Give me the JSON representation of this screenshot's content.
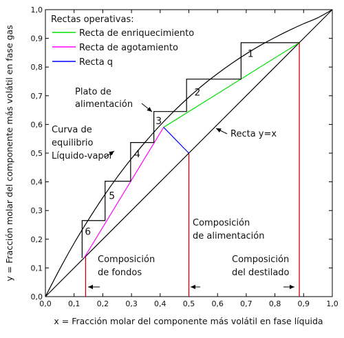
{
  "chart_data": {
    "type": "line",
    "title": "",
    "xlabel": "x = Fracción molar del componente más volátil en fase líquida",
    "ylabel": "y = Fracción molar del componente más volátil en fase gas",
    "xlim": [
      0,
      1
    ],
    "ylim": [
      0,
      1
    ],
    "xticks": [
      "0,0",
      "0,1",
      "0,2",
      "0,3",
      "0,4",
      "0,5",
      "0,6",
      "0,7",
      "0,8",
      "0,9",
      "1,0"
    ],
    "yticks": [
      "0,0",
      "0,1",
      "0,2",
      "0,3",
      "0,4",
      "0,5",
      "0,6",
      "0,7",
      "0,8",
      "0,9",
      "1,0"
    ],
    "grid": false,
    "legend": {
      "title": "Rectas operativas:",
      "placement": "top-left",
      "entries": [
        {
          "label": "Recta de enriquecimiento",
          "color": "#00e000"
        },
        {
          "label": "Recta de agotamiento",
          "color": "#ff00ff"
        },
        {
          "label": "Recta q",
          "color": "#0000ff"
        }
      ]
    },
    "colors": {
      "curve": "#000000",
      "stairs": "#000000",
      "composition_markers": "#d00000"
    },
    "series": [
      {
        "name": "Curva de equilibrio Líquido-vapor",
        "x": [
          0.0,
          0.05,
          0.1,
          0.15,
          0.2,
          0.25,
          0.3,
          0.35,
          0.4,
          0.45,
          0.5,
          0.55,
          0.6,
          0.65,
          0.7,
          0.75,
          0.8,
          0.85,
          0.9,
          0.95,
          1.0
        ],
        "y": [
          0.0,
          0.096,
          0.186,
          0.268,
          0.345,
          0.416,
          0.481,
          0.541,
          0.597,
          0.648,
          0.695,
          0.738,
          0.777,
          0.813,
          0.846,
          0.876,
          0.903,
          0.928,
          0.951,
          0.972,
          1.0
        ]
      },
      {
        "name": "Recta y=x",
        "x": [
          0,
          1
        ],
        "y": [
          0,
          1
        ]
      },
      {
        "name": "Recta de enriquecimiento",
        "x": [
          0.412,
          0.885
        ],
        "y": [
          0.59,
          0.885
        ]
      },
      {
        "name": "Recta de agotamiento",
        "x": [
          0.135,
          0.412
        ],
        "y": [
          0.135,
          0.59
        ]
      },
      {
        "name": "Recta q",
        "x": [
          0.412,
          0.5
        ],
        "y": [
          0.59,
          0.5
        ]
      },
      {
        "name": "Escalones",
        "x": [
          0.885,
          0.682,
          0.682,
          0.492,
          0.492,
          0.378,
          0.378,
          0.297,
          0.297,
          0.208,
          0.208,
          0.128,
          0.128
        ],
        "y": [
          0.885,
          0.885,
          0.758,
          0.758,
          0.645,
          0.645,
          0.537,
          0.537,
          0.402,
          0.402,
          0.265,
          0.265,
          0.135
        ]
      }
    ],
    "vertical_markers": [
      {
        "name": "Composición de fondos",
        "x": 0.14
      },
      {
        "name": "Composición de alimentación",
        "x": 0.5
      },
      {
        "name": "Composición del destilado",
        "x": 0.885
      }
    ],
    "stage_labels": [
      {
        "text": "1",
        "x": 0.715,
        "y": 0.845
      },
      {
        "text": "2",
        "x": 0.53,
        "y": 0.71
      },
      {
        "text": "3",
        "x": 0.395,
        "y": 0.61
      },
      {
        "text": "4",
        "x": 0.32,
        "y": 0.495
      },
      {
        "text": "5",
        "x": 0.232,
        "y": 0.35
      },
      {
        "text": "6",
        "x": 0.148,
        "y": 0.225
      }
    ],
    "annotations": [
      {
        "id": "plato",
        "lines": [
          "Plato de",
          "alimentación"
        ]
      },
      {
        "id": "curva",
        "lines": [
          "Curva de",
          "equilibrio",
          "Líquido-vapor"
        ]
      },
      {
        "id": "recta_yx",
        "lines": [
          "Recta y=x"
        ]
      },
      {
        "id": "alimentacion",
        "lines": [
          "Composición",
          "de alimentación"
        ]
      },
      {
        "id": "fondos",
        "lines": [
          "Composición",
          "de fondos"
        ]
      },
      {
        "id": "destilado",
        "lines": [
          "Composición",
          "del destilado"
        ]
      }
    ]
  }
}
